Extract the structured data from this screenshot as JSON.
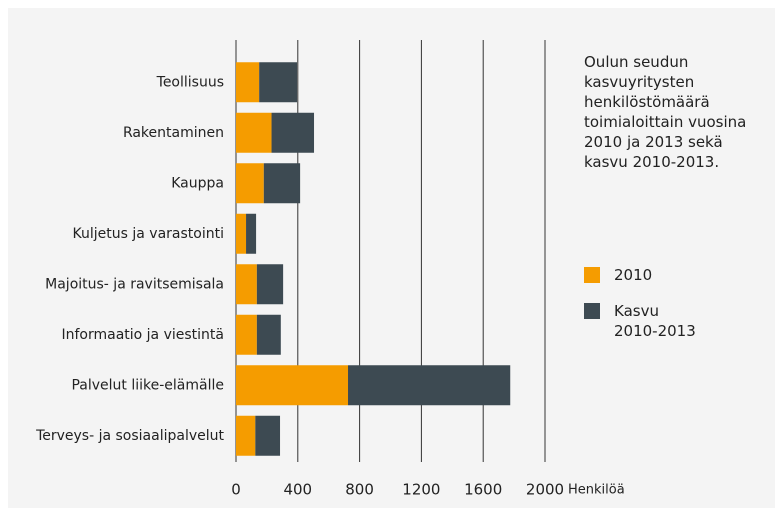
{
  "chart_data": {
    "type": "stacked-bar-horizontal",
    "title": "Oulun seudun kasvuyritysten henkilöstömäärä toimialoittain vuosina 2010 ja 2013 sekä kasvu 2010-2013.",
    "x_label": "Henkilöä",
    "categories": [
      "Teollisuus",
      "Rakentaminen",
      "Kauppa",
      "Kuljetus ja varastointi",
      "Majoitus- ja ravitsemisala",
      "Informaatio ja viestintä",
      "Palvelut liike-elämälle",
      "Terveys- ja sosiaalipalvelut"
    ],
    "series": [
      {
        "name": "2010",
        "color": "#f59c00",
        "values": [
          150,
          230,
          180,
          65,
          135,
          135,
          725,
          125
        ]
      },
      {
        "name": "Kasvu 2010-2013",
        "color": "#3d4a52",
        "values": [
          245,
          275,
          235,
          65,
          170,
          155,
          1050,
          160
        ]
      }
    ],
    "xlim": [
      0,
      2000
    ],
    "xticks": [
      0,
      400,
      800,
      1200,
      1600,
      2000
    ],
    "grid": true
  }
}
